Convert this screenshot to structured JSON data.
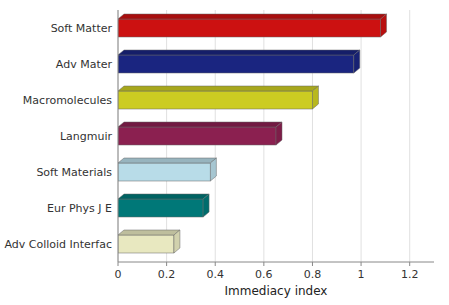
{
  "chart_data": {
    "type": "bar",
    "orientation": "horizontal",
    "categories": [
      "Adv Colloid Interfac",
      "Eur Phys J E",
      "Soft Materials",
      "Langmuir",
      "Macromolecules",
      "Adv Mater",
      "Soft Matter"
    ],
    "values": [
      0.23,
      0.35,
      0.38,
      0.65,
      0.8,
      0.97,
      1.08
    ],
    "colors": [
      "#e8e8c0",
      "#007878",
      "#b8dce8",
      "#8b2050",
      "#cccc22",
      "#1a2580",
      "#cc1111"
    ],
    "xlabel": "Immediacy index",
    "xlim": [
      0,
      1.3
    ],
    "xticks": [
      0,
      0.2,
      0.4,
      0.6,
      0.8,
      1,
      1.2
    ],
    "grid": true
  }
}
